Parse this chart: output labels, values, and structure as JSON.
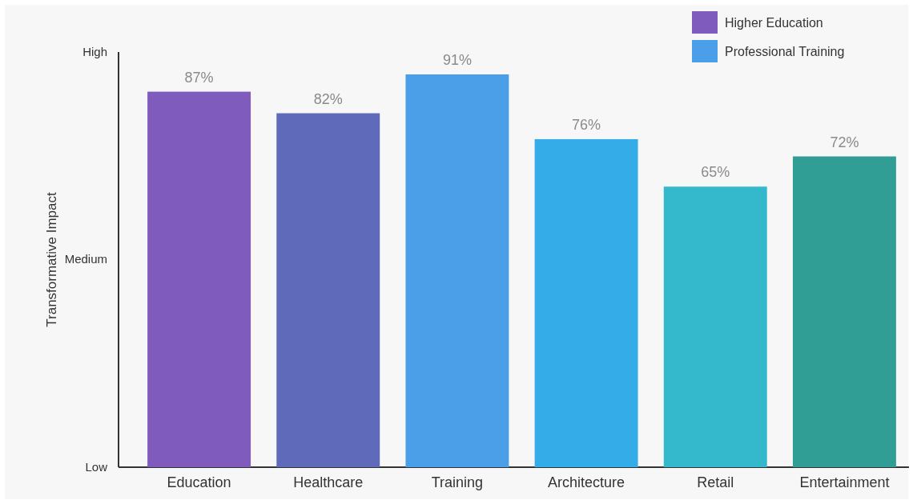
{
  "chart_data": {
    "type": "bar",
    "ylabel": "Transformative Impact",
    "categories": [
      "Education",
      "Healthcare",
      "Training",
      "Architecture",
      "Retail",
      "Entertainment"
    ],
    "series": [
      {
        "name": "Higher Education",
        "color": "#7e5bbd",
        "colors": [
          "#7e5bbd",
          "#5f6bba",
          null,
          null,
          null,
          null
        ],
        "values": [
          87,
          82,
          null,
          null,
          null,
          null
        ],
        "value_labels": [
          "87%",
          "82%",
          null,
          null,
          null,
          null
        ]
      },
      {
        "name": "Professional Training",
        "color": "#4a9fe8",
        "colors": [
          null,
          null,
          "#4a9fe8",
          "#33ace8",
          "#33b8cc",
          "#309e94"
        ],
        "values": [
          null,
          null,
          91,
          76,
          65,
          72
        ],
        "value_labels": [
          null,
          null,
          "91%",
          "76%",
          "65%",
          "72%"
        ]
      }
    ],
    "stacked": true,
    "annotations": [
      "Low",
      "Medium",
      "High"
    ],
    "legend": "top right"
  }
}
